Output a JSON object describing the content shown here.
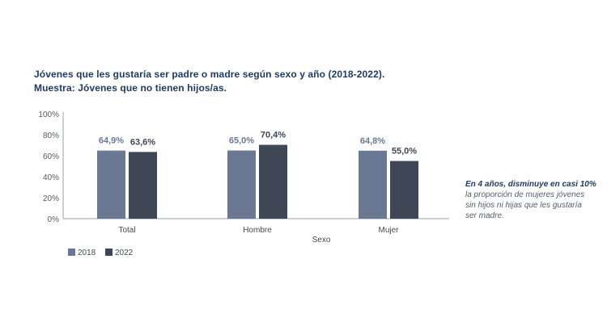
{
  "title_line1": "Jóvenes que les gustaría ser padre o madre según sexo y año (2018-2022).",
  "title_line2": "Muestra: Jóvenes que no tienen hijos/as.",
  "chart_data": {
    "type": "bar",
    "title": "Jóvenes que les gustaría ser padre o madre según sexo y año (2018-2022).",
    "xlabel": "Sexo",
    "ylabel": "",
    "ylim": [
      0,
      100
    ],
    "y_ticks": [
      "0%",
      "20%",
      "40%",
      "60%",
      "80%",
      "100%"
    ],
    "categories": [
      "Total",
      "Hombre",
      "Mujer"
    ],
    "series": [
      {
        "name": "2018",
        "values": [
          64.9,
          65.0,
          64.8
        ],
        "labels": [
          "64,9%",
          "65,0%",
          "64,8%"
        ],
        "color": "#6a7894"
      },
      {
        "name": "2022",
        "values": [
          63.6,
          70.4,
          55.0
        ],
        "labels": [
          "63,6%",
          "70,4%",
          "55,0%"
        ],
        "color": "#3f4756"
      }
    ],
    "legend_position": "bottom-left",
    "grid": false
  },
  "note": {
    "bold": "En 4 años, disminuye en casi 10%",
    "rest": "la proporción de mujeres jóvenes sin hijos ni hijas que les gustaría ser madre."
  }
}
